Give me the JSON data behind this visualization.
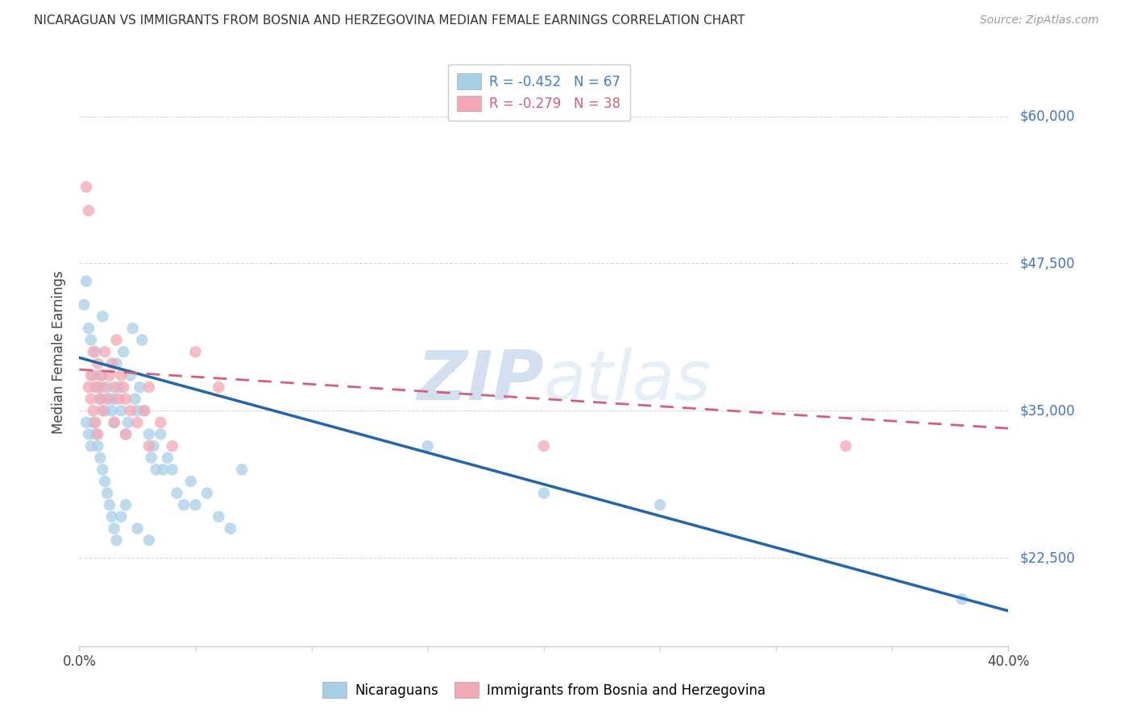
{
  "title": "NICARAGUAN VS IMMIGRANTS FROM BOSNIA AND HERZEGOVINA MEDIAN FEMALE EARNINGS CORRELATION CHART",
  "source": "Source: ZipAtlas.com",
  "ylabel": "Median Female Earnings",
  "ytick_vals": [
    22500,
    35000,
    47500,
    60000
  ],
  "ytick_labels": [
    "$22,500",
    "$35,000",
    "$47,500",
    "$60,000"
  ],
  "xtick_vals": [
    0.0,
    0.05,
    0.1,
    0.15,
    0.2,
    0.25,
    0.3,
    0.35,
    0.4
  ],
  "xtick_labels": [
    "0.0%",
    "",
    "",
    "",
    "",
    "",
    "",
    "",
    "40.0%"
  ],
  "xlim": [
    0.0,
    0.4
  ],
  "ylim": [
    15000,
    65000
  ],
  "legend_r_entries": [
    {
      "label": "R = -0.452   N = 67",
      "color": "#3a7fc1"
    },
    {
      "label": "R = -0.279   N = 38",
      "color": "#d45f7a"
    }
  ],
  "legend_bottom": [
    "Nicaraguans",
    "Immigrants from Bosnia and Herzegovina"
  ],
  "blue_scatter": "#a8cfe8",
  "pink_scatter": "#f4a7b5",
  "trend_blue_color": "#2166ac",
  "trend_pink_color": "#d45f7a",
  "watermark_zip": "ZIP",
  "watermark_atlas": "atlas",
  "watermark_color_zip": "#b8cfe8",
  "watermark_color_atlas": "#c8ddf0",
  "grid_color": "#d8d8d8",
  "blue_trend_x": [
    0.0,
    0.4
  ],
  "blue_trend_y": [
    39500,
    18000
  ],
  "pink_trend_x": [
    0.0,
    0.4
  ],
  "pink_trend_y": [
    38500,
    33500
  ],
  "nic_x": [
    0.002,
    0.003,
    0.004,
    0.005,
    0.006,
    0.007,
    0.008,
    0.009,
    0.01,
    0.01,
    0.011,
    0.012,
    0.013,
    0.014,
    0.015,
    0.015,
    0.016,
    0.017,
    0.018,
    0.019,
    0.02,
    0.021,
    0.022,
    0.023,
    0.024,
    0.025,
    0.026,
    0.027,
    0.028,
    0.03,
    0.031,
    0.032,
    0.033,
    0.035,
    0.036,
    0.038,
    0.04,
    0.042,
    0.045,
    0.048,
    0.05,
    0.055,
    0.06,
    0.065,
    0.07,
    0.003,
    0.004,
    0.005,
    0.006,
    0.007,
    0.008,
    0.009,
    0.01,
    0.011,
    0.012,
    0.013,
    0.014,
    0.015,
    0.016,
    0.018,
    0.02,
    0.025,
    0.03,
    0.15,
    0.2,
    0.25,
    0.38
  ],
  "nic_y": [
    44000,
    46000,
    42000,
    41000,
    38000,
    40000,
    37000,
    36000,
    38000,
    43000,
    35000,
    37000,
    36000,
    35000,
    34000,
    36000,
    39000,
    37000,
    35000,
    40000,
    33000,
    34000,
    38000,
    42000,
    36000,
    35000,
    37000,
    41000,
    35000,
    33000,
    31000,
    32000,
    30000,
    33000,
    30000,
    31000,
    30000,
    28000,
    27000,
    29000,
    27000,
    28000,
    26000,
    25000,
    30000,
    34000,
    33000,
    32000,
    34000,
    33000,
    32000,
    31000,
    30000,
    29000,
    28000,
    27000,
    26000,
    25000,
    24000,
    26000,
    27000,
    25000,
    24000,
    32000,
    28000,
    27000,
    19000
  ],
  "bos_x": [
    0.003,
    0.004,
    0.005,
    0.006,
    0.007,
    0.008,
    0.009,
    0.01,
    0.011,
    0.012,
    0.013,
    0.014,
    0.015,
    0.016,
    0.017,
    0.018,
    0.019,
    0.02,
    0.022,
    0.025,
    0.028,
    0.03,
    0.035,
    0.04,
    0.05,
    0.06,
    0.2,
    0.33,
    0.004,
    0.005,
    0.006,
    0.007,
    0.008,
    0.009,
    0.01,
    0.015,
    0.02,
    0.03
  ],
  "bos_y": [
    54000,
    52000,
    38000,
    40000,
    37000,
    39000,
    38000,
    37000,
    40000,
    36000,
    38000,
    39000,
    37000,
    41000,
    36000,
    38000,
    37000,
    36000,
    35000,
    34000,
    35000,
    37000,
    34000,
    32000,
    40000,
    37000,
    32000,
    32000,
    37000,
    36000,
    35000,
    34000,
    33000,
    36000,
    35000,
    34000,
    33000,
    32000
  ]
}
